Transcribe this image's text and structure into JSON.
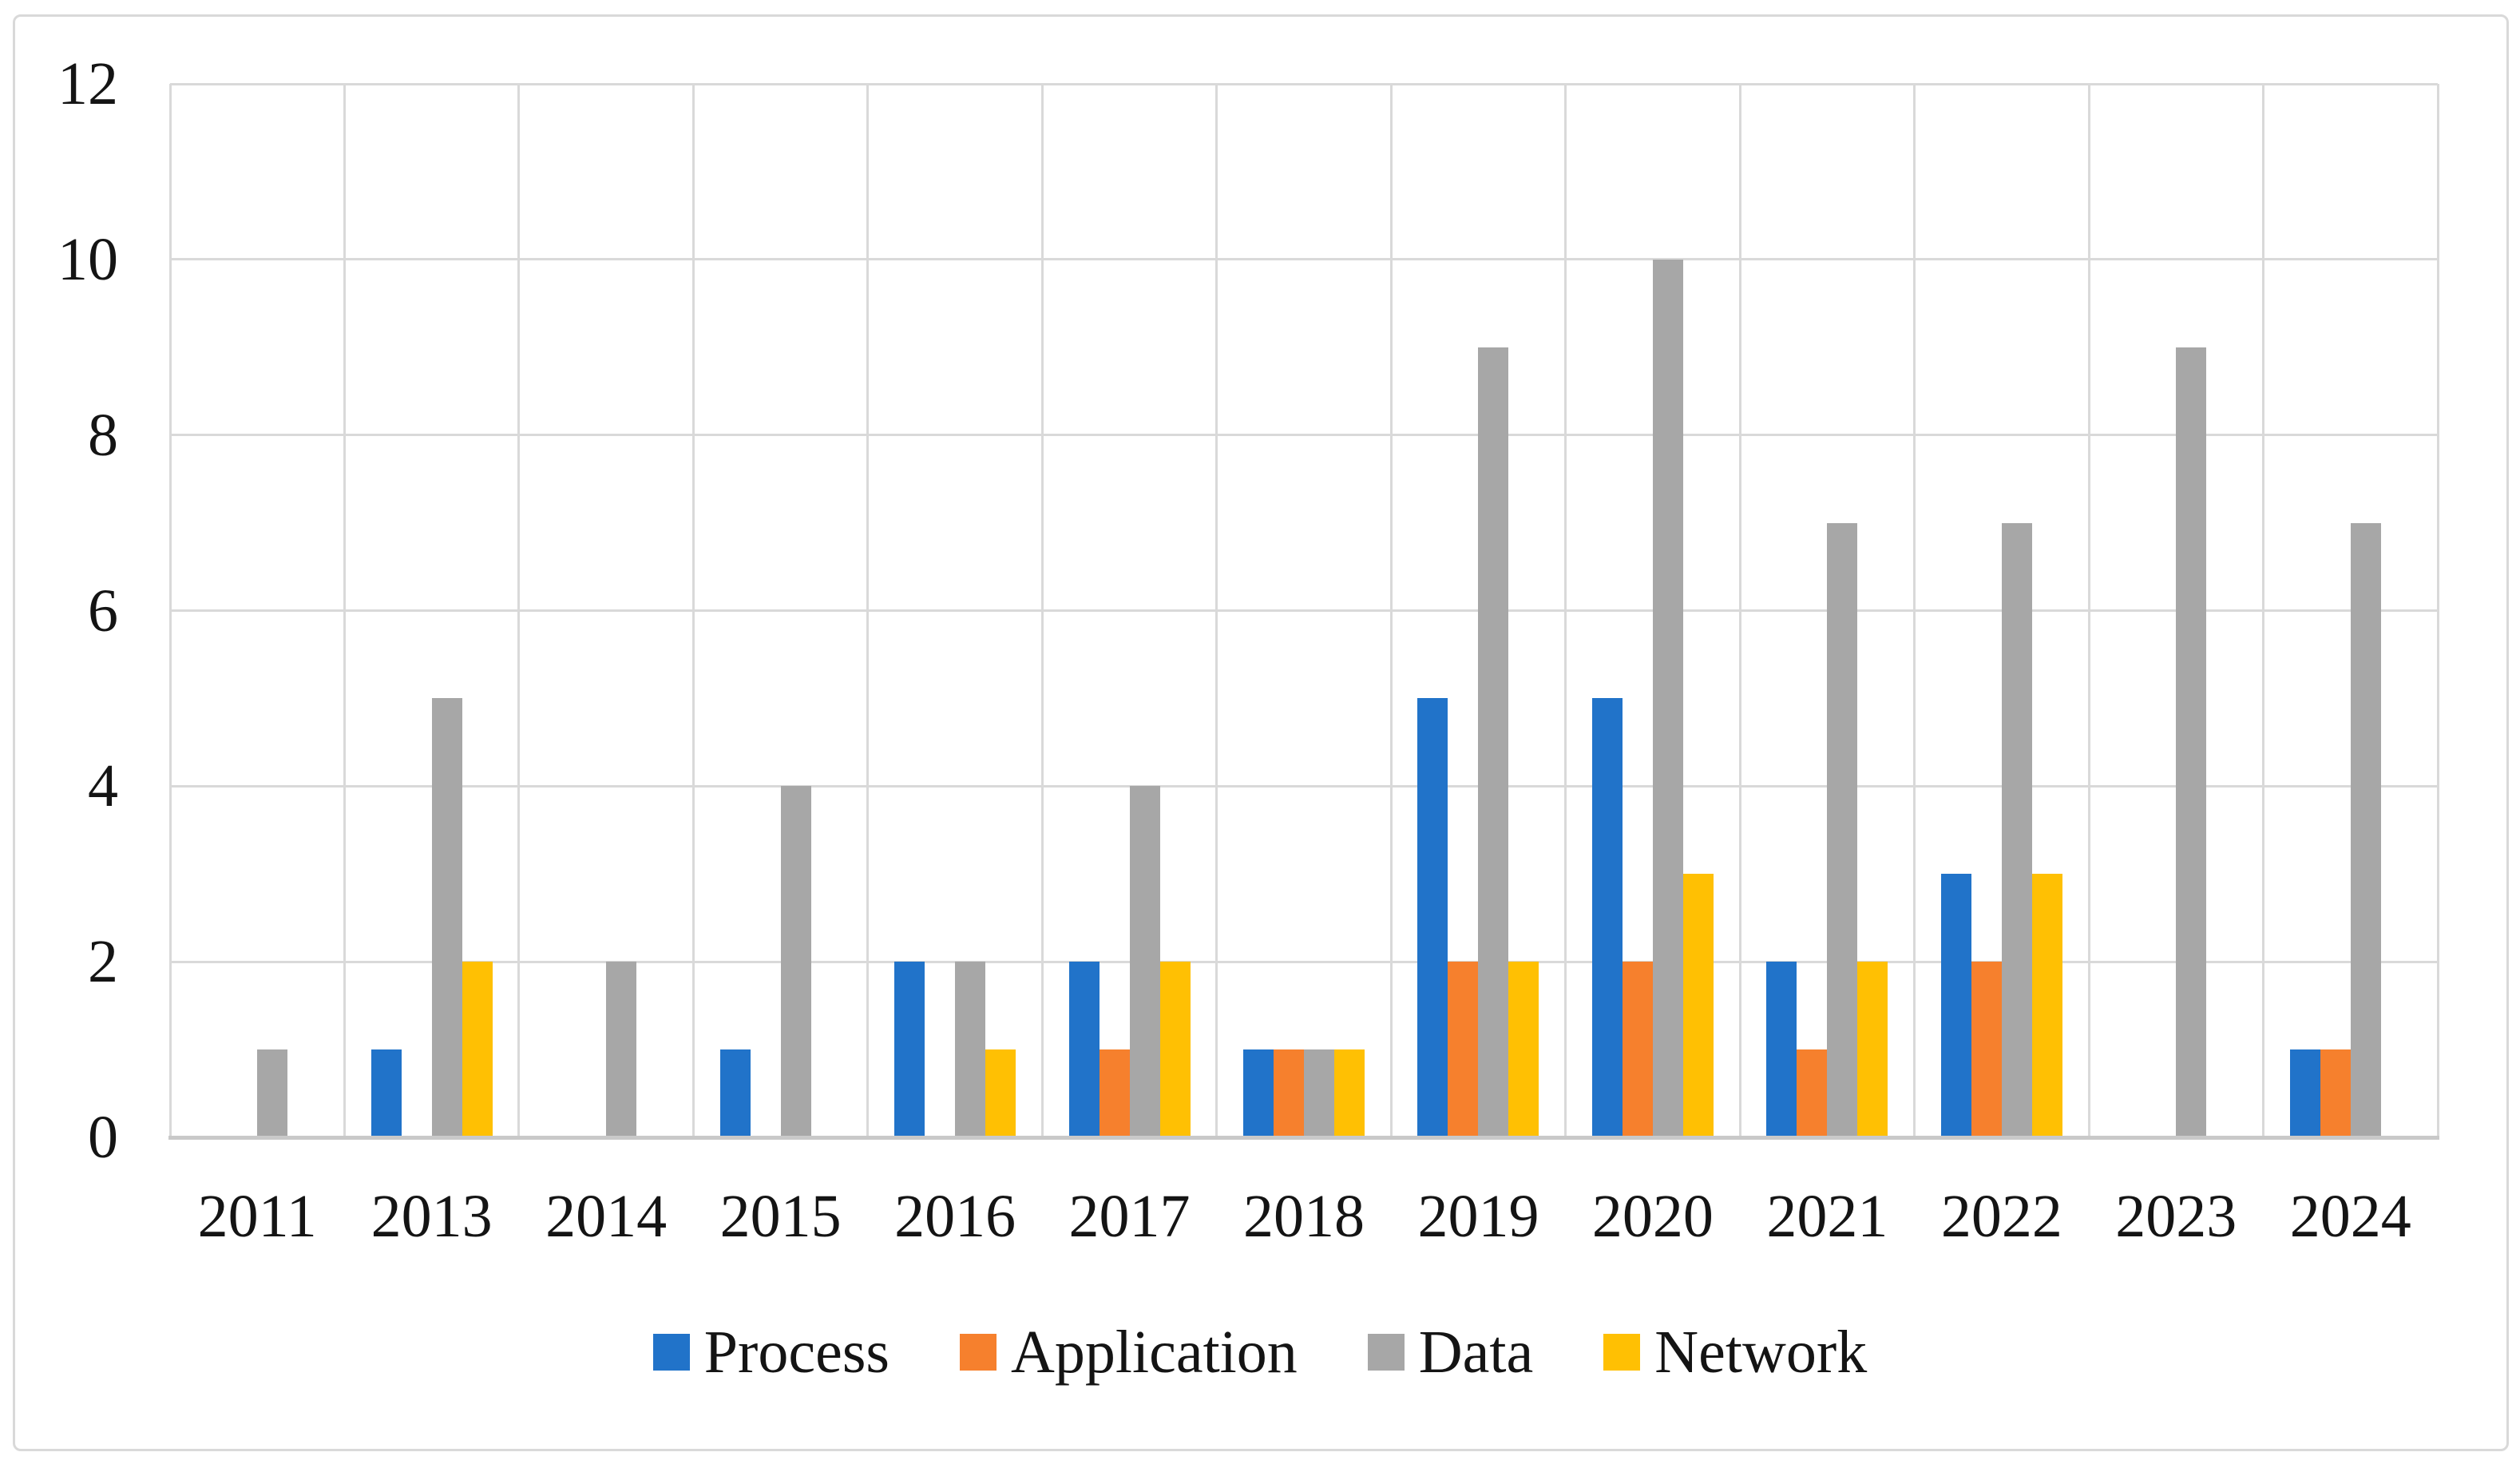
{
  "chart_data": {
    "type": "bar",
    "title": "",
    "xlabel": "",
    "ylabel": "",
    "categories": [
      "2011",
      "2013",
      "2014",
      "2015",
      "2016",
      "2017",
      "2018",
      "2019",
      "2020",
      "2021",
      "2022",
      "2023",
      "2024"
    ],
    "series": [
      {
        "name": "Process",
        "color": "#2173C9",
        "values": [
          0,
          1,
          0,
          1,
          2,
          2,
          1,
          5,
          5,
          2,
          3,
          0,
          1
        ]
      },
      {
        "name": "Application",
        "color": "#F6802D",
        "values": [
          0,
          0,
          0,
          0,
          0,
          1,
          1,
          2,
          2,
          1,
          2,
          0,
          1
        ]
      },
      {
        "name": "Data",
        "color": "#A7A7A7",
        "values": [
          1,
          5,
          2,
          4,
          2,
          4,
          1,
          9,
          10,
          7,
          7,
          9,
          7
        ]
      },
      {
        "name": "Network",
        "color": "#FFC003",
        "values": [
          0,
          2,
          0,
          0,
          1,
          2,
          1,
          2,
          3,
          2,
          3,
          0,
          0
        ]
      }
    ],
    "ylim": [
      0,
      12
    ],
    "y_ticks": [
      "0",
      "2",
      "4",
      "6",
      "8",
      "10",
      "12"
    ],
    "grid": true,
    "legend_position": "bottom"
  },
  "styles": {
    "background": "#FFFFFF",
    "gridline_color": "#D9D9D9",
    "axis_line_color": "#C9C9C9",
    "border_color": "#D9D9D9",
    "text_color": "#141414"
  }
}
